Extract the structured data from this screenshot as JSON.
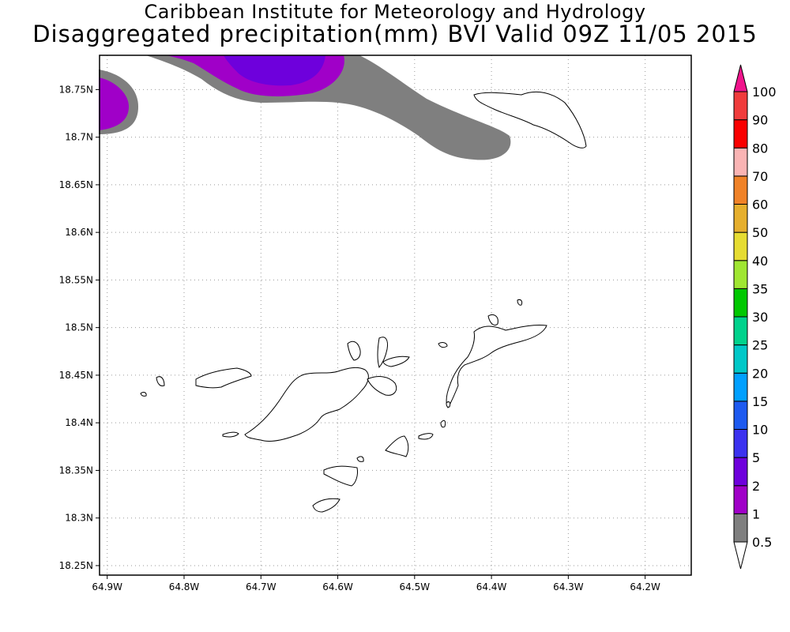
{
  "header": {
    "title": "Caribbean Institute for Meteorology and Hydrology",
    "subtitle": "Disaggregated precipitation(mm) BVI Valid 09Z 11/05 2015"
  },
  "map": {
    "lon_range": [
      -64.91,
      -64.14
    ],
    "lat_range": [
      18.24,
      18.786
    ],
    "lon_ticks": [
      {
        "value": -64.9,
        "label": "64.9W"
      },
      {
        "value": -64.8,
        "label": "64.8W"
      },
      {
        "value": -64.7,
        "label": "64.7W"
      },
      {
        "value": -64.6,
        "label": "64.6W"
      },
      {
        "value": -64.5,
        "label": "64.5W"
      },
      {
        "value": -64.4,
        "label": "64.4W"
      },
      {
        "value": -64.3,
        "label": "64.3W"
      },
      {
        "value": -64.2,
        "label": "64.2W"
      }
    ],
    "lat_ticks": [
      {
        "value": 18.75,
        "label": "18.75N"
      },
      {
        "value": 18.7,
        "label": "18.7N"
      },
      {
        "value": 18.65,
        "label": "18.65N"
      },
      {
        "value": 18.6,
        "label": "18.6N"
      },
      {
        "value": 18.55,
        "label": "18.55N"
      },
      {
        "value": 18.5,
        "label": "18.5N"
      },
      {
        "value": 18.45,
        "label": "18.45N"
      },
      {
        "value": 18.4,
        "label": "18.4N"
      },
      {
        "value": 18.35,
        "label": "18.35N"
      },
      {
        "value": 18.3,
        "label": "18.3N"
      },
      {
        "value": 18.25,
        "label": "18.25N"
      }
    ],
    "grid": "dotted"
  },
  "legend": {
    "units": "mm",
    "bins": [
      {
        "label": "0.5",
        "color": "#ffffff"
      },
      {
        "label": "1",
        "color": "#7f7f7f"
      },
      {
        "label": "2",
        "color": "#a000c8"
      },
      {
        "label": "5",
        "color": "#6e00dc"
      },
      {
        "label": "10",
        "color": "#3c32f0"
      },
      {
        "label": "15",
        "color": "#1e5af0"
      },
      {
        "label": "20",
        "color": "#00a0ff"
      },
      {
        "label": "25",
        "color": "#00c8c8"
      },
      {
        "label": "30",
        "color": "#00d28c"
      },
      {
        "label": "35",
        "color": "#00c800"
      },
      {
        "label": "40",
        "color": "#a0e632"
      },
      {
        "label": "50",
        "color": "#e6dc32"
      },
      {
        "label": "60",
        "color": "#e6af2d"
      },
      {
        "label": "70",
        "color": "#f08228"
      },
      {
        "label": "80",
        "color": "#fab4b4"
      },
      {
        "label": "90",
        "color": "#fa0000"
      },
      {
        "label": "100",
        "color": "#f03c3c"
      },
      {
        "label": "",
        "color": "#f0148c"
      }
    ]
  },
  "precip_colors": {
    "light": "#7f7f7f",
    "moderate": "#a000c8",
    "heavy": "#6e00dc"
  }
}
